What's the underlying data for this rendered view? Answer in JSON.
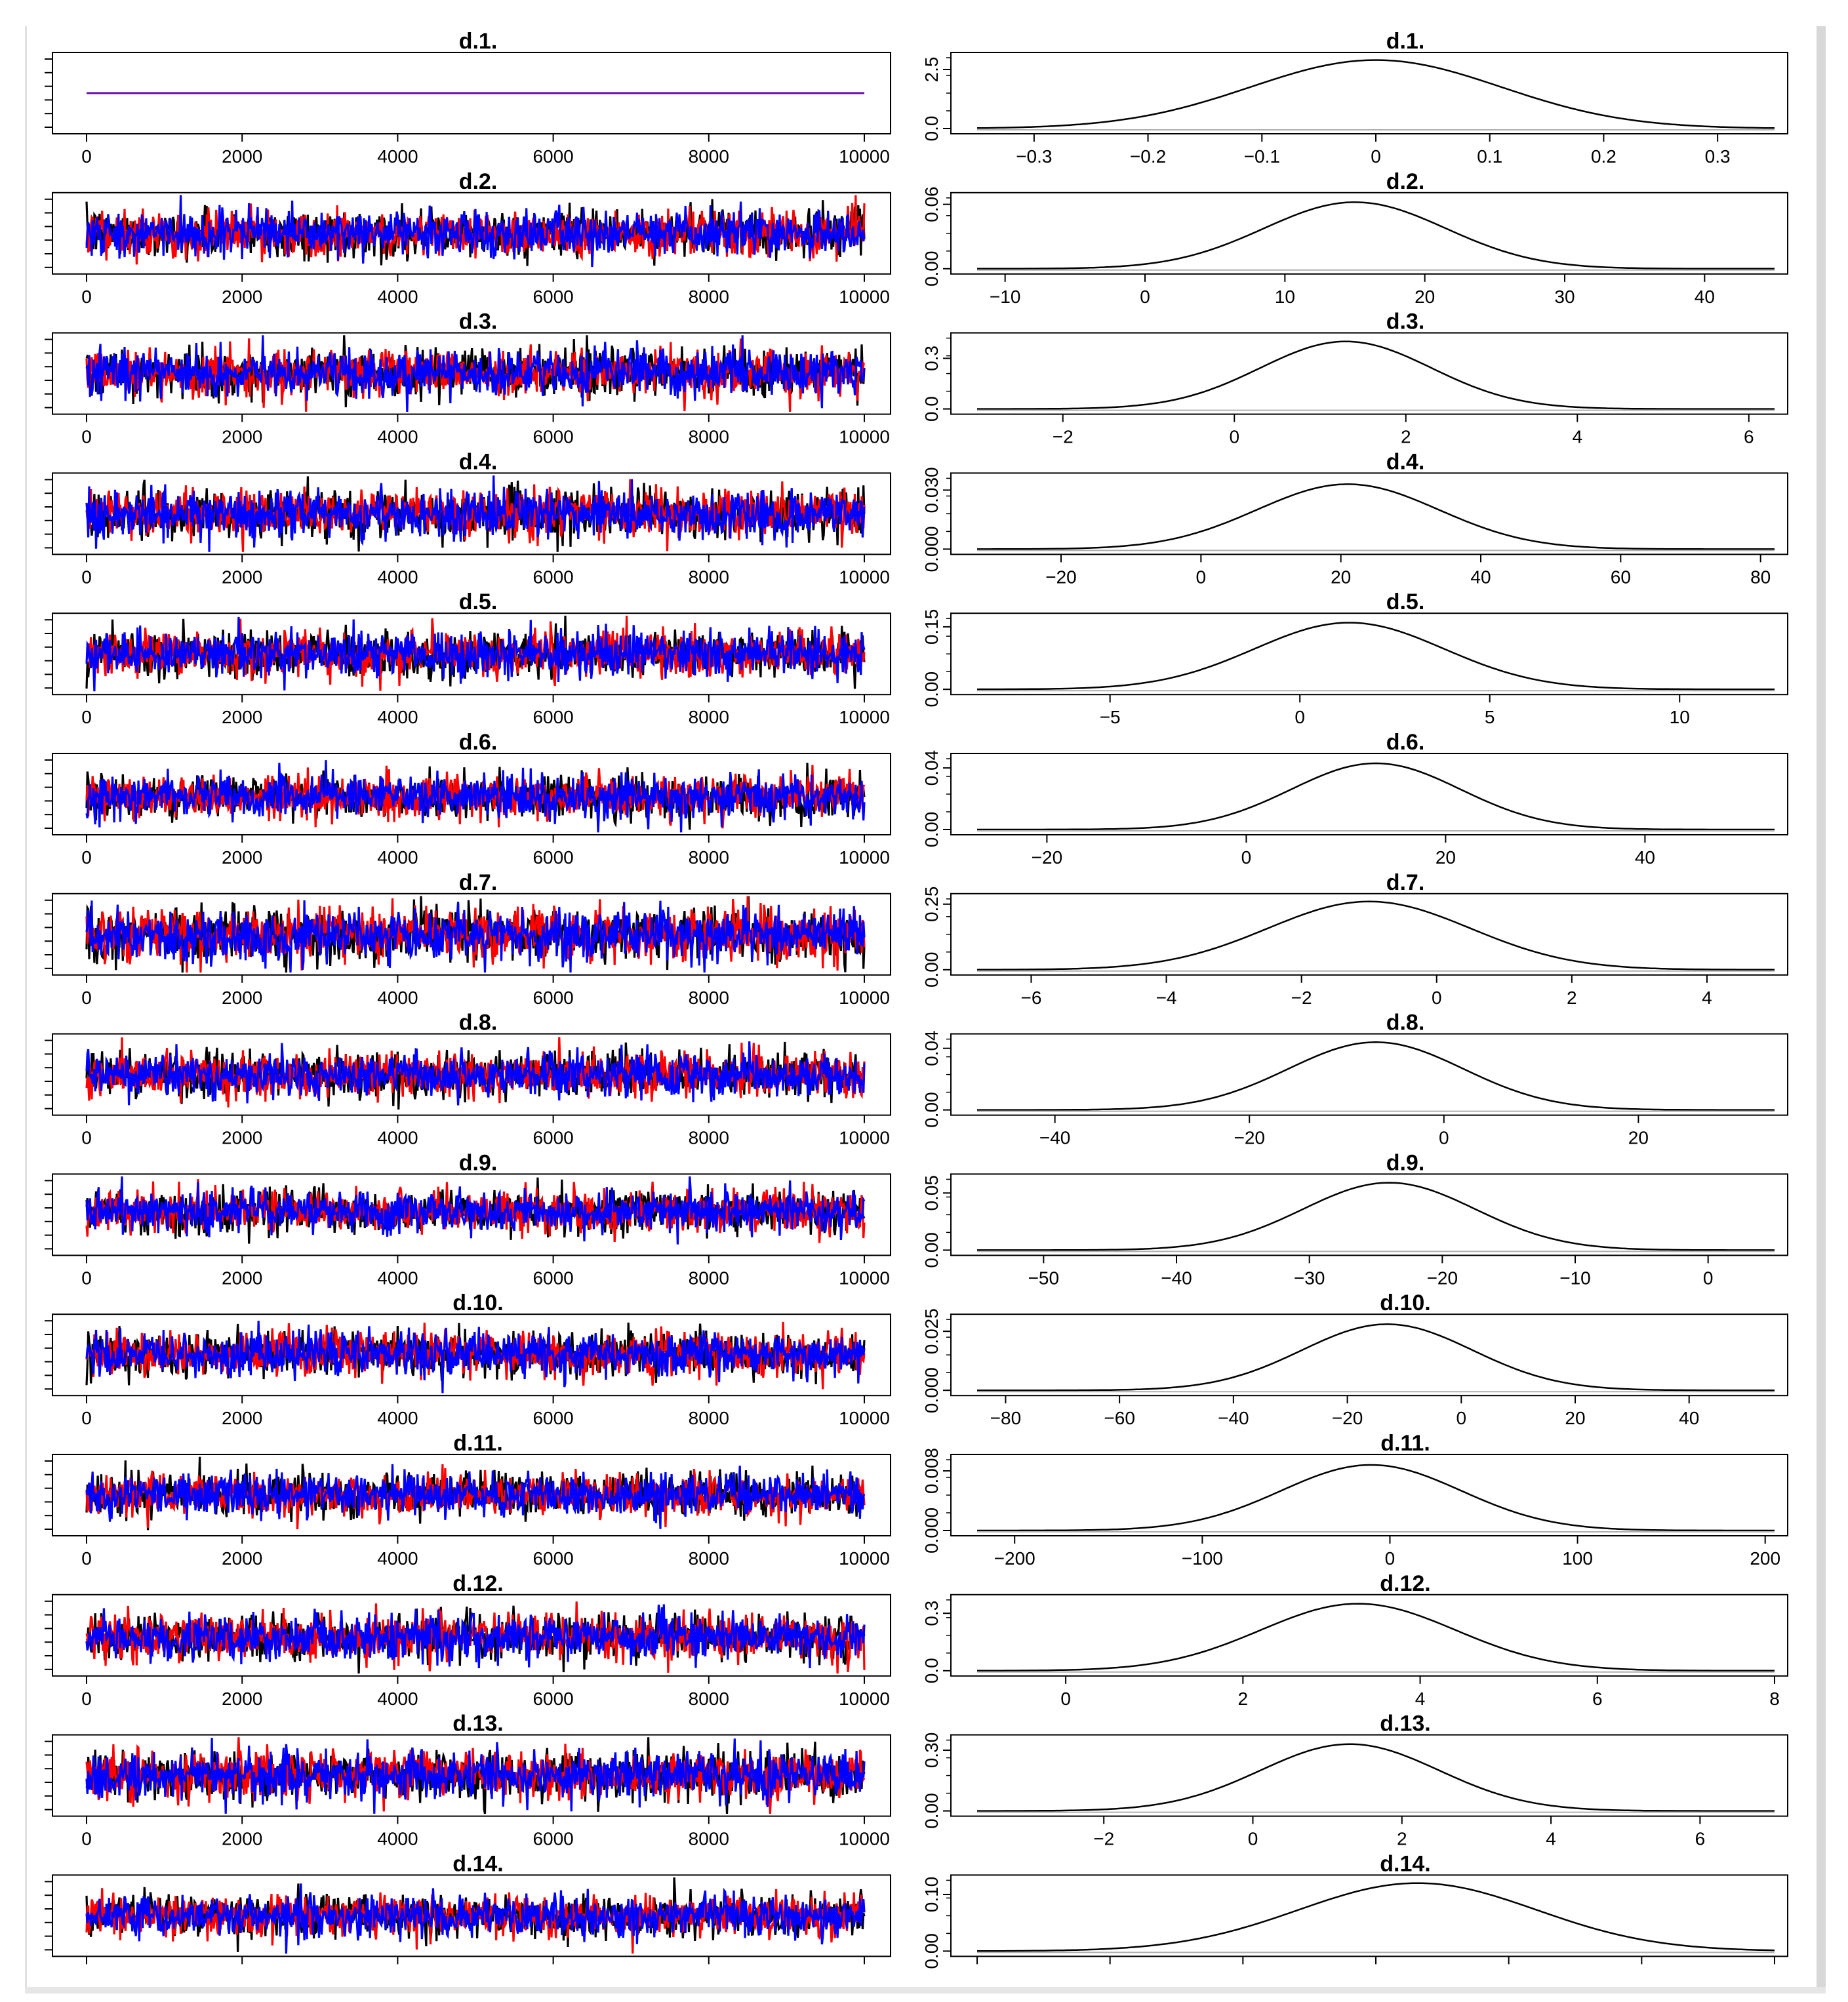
{
  "chart_data": {
    "type": "line",
    "description_layout": "left column trace plots, right column density plots",
    "series_colors": [
      "#000000",
      "#ff0000",
      "#0000ff"
    ],
    "trace_x_ticks": [
      0,
      2000,
      4000,
      6000,
      8000,
      10000
    ],
    "trace_xlim": [
      0,
      10000
    ],
    "parameters": [
      {
        "title": "d.1.",
        "trace": {
          "mean": 0.0,
          "spread": 0.0,
          "ylim": [
            -0.6,
            0.6
          ],
          "constant_color": "#6a0dad"
        },
        "density": {
          "x_ticks": [
            -0.3,
            -0.2,
            -0.1,
            0.0,
            0.1,
            0.2,
            0.3
          ],
          "xlim": [
            -0.35,
            0.35
          ],
          "y_ticks": [
            "0.0",
            "2.5"
          ],
          "ylim": [
            0,
            3.0
          ],
          "mean": 0.0,
          "sd": 0.11,
          "peak": 2.9
        }
      },
      {
        "title": "d.2.",
        "trace": {
          "mean": 15,
          "spread": 7,
          "ylim": [
            -10,
            40
          ]
        },
        "density": {
          "x_ticks": [
            -10,
            0,
            10,
            20,
            30,
            40
          ],
          "xlim": [
            -12,
            45
          ],
          "y_ticks": [
            "0.00",
            "0.06"
          ],
          "ylim": [
            0,
            0.066
          ],
          "mean": 15,
          "sd": 6.5,
          "peak": 0.062
        }
      },
      {
        "title": "d.3.",
        "trace": {
          "mean": 1.6,
          "spread": 1.0,
          "ylim": [
            -2.0,
            5.0
          ]
        },
        "density": {
          "x_ticks": [
            -2,
            0,
            2,
            4,
            6
          ],
          "xlim": [
            -3,
            6.3
          ],
          "y_ticks": [
            "0.0",
            "0.3"
          ],
          "ylim": [
            0,
            0.42
          ],
          "mean": 1.3,
          "sd": 1.0,
          "peak": 0.4
        }
      },
      {
        "title": "d.4.",
        "trace": {
          "mean": 20,
          "spread": 12,
          "ylim": [
            -20,
            60
          ]
        },
        "density": {
          "x_ticks": [
            -20,
            0,
            20,
            40,
            60,
            80
          ],
          "xlim": [
            -32,
            82
          ],
          "y_ticks": [
            "0.000",
            "0.030"
          ],
          "ylim": [
            0,
            0.036
          ],
          "mean": 21,
          "sd": 13,
          "peak": 0.033
        }
      },
      {
        "title": "d.5.",
        "trace": {
          "mean": 1.0,
          "spread": 2.5,
          "ylim": [
            -8,
            10
          ]
        },
        "density": {
          "x_ticks": [
            -5,
            0,
            5,
            10
          ],
          "xlim": [
            -8.5,
            12.5
          ],
          "y_ticks": [
            "0.00",
            "0.15"
          ],
          "ylim": [
            0,
            0.17
          ],
          "mean": 1.3,
          "sd": 2.5,
          "peak": 0.16
        }
      },
      {
        "title": "d.6.",
        "trace": {
          "mean": 13,
          "spread": 8,
          "ylim": [
            -15,
            45
          ]
        },
        "density": {
          "x_ticks": [
            -20,
            0,
            20,
            40
          ],
          "xlim": [
            -27,
            53
          ],
          "y_ticks": [
            "0.00",
            "0.04"
          ],
          "ylim": [
            0,
            0.046
          ],
          "mean": 13,
          "sd": 8.5,
          "peak": 0.043
        }
      },
      {
        "title": "d.7.",
        "trace": {
          "mean": -1.0,
          "spread": 1.6,
          "ylim": [
            -6,
            4
          ]
        },
        "density": {
          "x_ticks": [
            -6,
            -4,
            -2,
            0,
            2,
            4
          ],
          "xlim": [
            -6.8,
            5
          ],
          "y_ticks": [
            "0.00",
            "0.25"
          ],
          "ylim": [
            0,
            0.27
          ],
          "mean": -1.0,
          "sd": 1.5,
          "peak": 0.26
        }
      },
      {
        "title": "d.8.",
        "trace": {
          "mean": -8,
          "spread": 9,
          "ylim": [
            -40,
            25
          ]
        },
        "density": {
          "x_ticks": [
            -40,
            -20,
            0,
            20
          ],
          "xlim": [
            -48,
            34
          ],
          "y_ticks": [
            "0.00",
            "0.04"
          ],
          "ylim": [
            0,
            0.046
          ],
          "mean": -7,
          "sd": 9,
          "peak": 0.044
        }
      },
      {
        "title": "d.9.",
        "trace": {
          "mean": -23,
          "spread": 6.5,
          "ylim": [
            -50,
            0
          ]
        },
        "density": {
          "x_ticks": [
            -50,
            -40,
            -30,
            -20,
            -10,
            0
          ],
          "xlim": [
            -55,
            5
          ],
          "y_ticks": [
            "0.00",
            "0.05"
          ],
          "ylim": [
            0,
            0.062
          ],
          "mean": -24,
          "sd": 6.5,
          "peak": 0.059
        }
      },
      {
        "title": "d.10.",
        "trace": {
          "mean": -14,
          "spread": 15,
          "ylim": [
            -70,
            40
          ]
        },
        "density": {
          "x_ticks": [
            -80,
            -60,
            -40,
            -20,
            0,
            20,
            40
          ],
          "xlim": [
            -85,
            55
          ],
          "y_ticks": [
            "0.000",
            "0.025"
          ],
          "ylim": [
            0,
            0.03
          ],
          "mean": -13,
          "sd": 15,
          "peak": 0.028
        }
      },
      {
        "title": "d.11.",
        "trace": {
          "mean": -5,
          "spread": 48,
          "ylim": [
            -190,
            180
          ]
        },
        "density": {
          "x_ticks": [
            -200,
            -100,
            0,
            100,
            200
          ],
          "xlim": [
            -220,
            205
          ],
          "y_ticks": [
            "0.000",
            "0.008"
          ],
          "ylim": [
            0,
            0.0095
          ],
          "mean": -10,
          "sd": 48,
          "peak": 0.0088
        }
      },
      {
        "title": "d.12.",
        "trace": {
          "mean": 3.3,
          "spread": 1.1,
          "ylim": [
            -0.5,
            7.5
          ]
        },
        "density": {
          "x_ticks": [
            0,
            2,
            4,
            6,
            8
          ],
          "xlim": [
            -1,
            8
          ],
          "y_ticks": [
            "0.0",
            "0.3"
          ],
          "ylim": [
            0,
            0.37
          ],
          "mean": 3.3,
          "sd": 1.1,
          "peak": 0.35
        }
      },
      {
        "title": "d.13.",
        "trace": {
          "mean": 1.5,
          "spread": 1.2,
          "ylim": [
            -2.5,
            5.5
          ]
        },
        "density": {
          "x_ticks": [
            -2,
            0,
            2,
            4,
            6
          ],
          "xlim": [
            -3.7,
            7
          ],
          "y_ticks": [
            "0.00",
            "0.30"
          ],
          "ylim": [
            0,
            0.35
          ],
          "mean": 1.3,
          "sd": 1.2,
          "peak": 0.33
        }
      },
      {
        "title": "d.14.",
        "trace": {
          "mean": 0,
          "spread": 1,
          "ylim": [
            -4,
            4
          ]
        },
        "density": {
          "x_ticks": [],
          "xlim": [
            -3.7,
            3.0
          ],
          "y_ticks": [
            "0.00",
            "0.10"
          ],
          "ylim": [
            0,
            0.125
          ],
          "mean": 0.0,
          "sd": 1.0,
          "peak": 0.12
        }
      }
    ]
  }
}
